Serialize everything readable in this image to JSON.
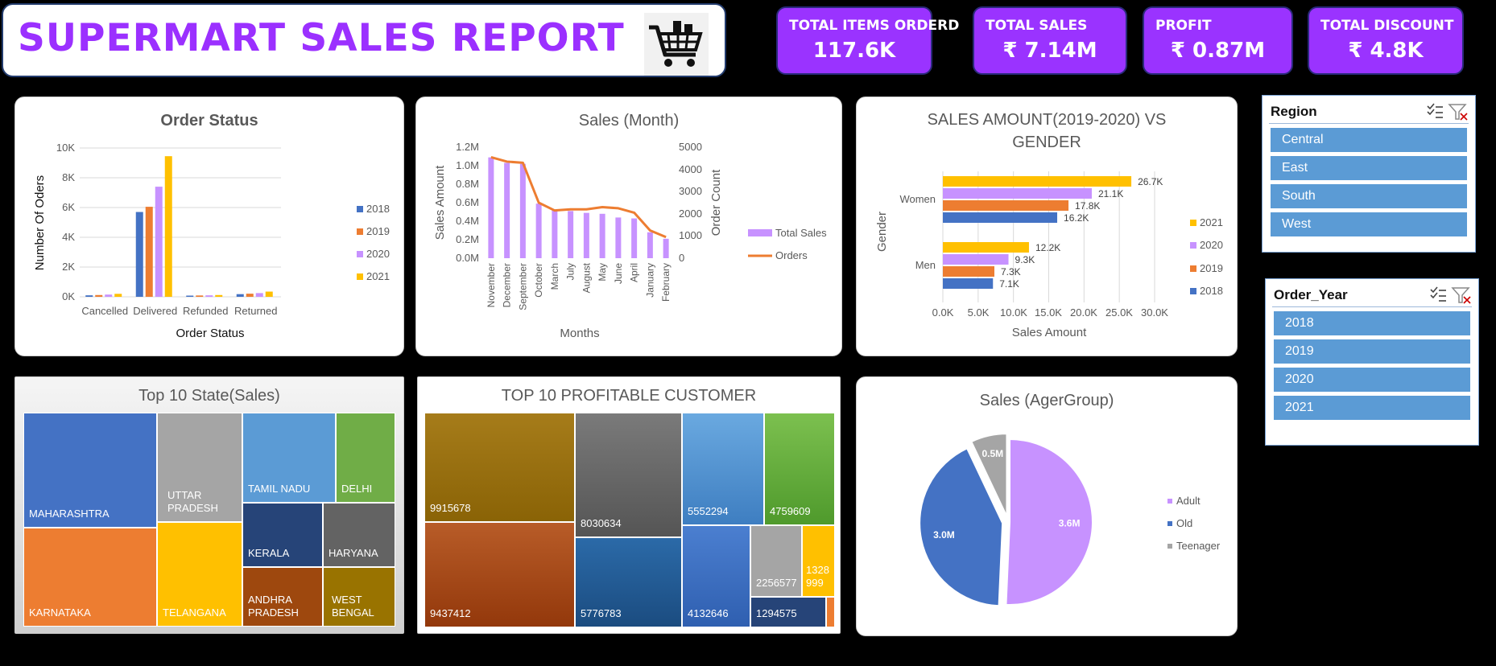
{
  "header": {
    "title": "SUPERMART SALES REPORT",
    "cart_icon": "shopping-cart-icon"
  },
  "kpis": [
    {
      "label": "TOTAL ITEMS ORDERD",
      "value": "117.6K"
    },
    {
      "label": "TOTAL SALES",
      "value": "₹ 7.14M"
    },
    {
      "label": "PROFIT",
      "value": "₹ 0.87M"
    },
    {
      "label": "TOTAL DISCOUNT",
      "value": "₹ 4.8K"
    }
  ],
  "order_status": {
    "title": "Order Status",
    "legend": [
      "2018",
      "2019",
      "2020",
      "2021"
    ],
    "xlabel": "Order Status",
    "ylabel": "Number Of Oders",
    "ticks": [
      "0K",
      "2K",
      "4K",
      "6K",
      "8K",
      "10K"
    ]
  },
  "sales_month": {
    "title": "Sales (Month)",
    "xlabel": "Months",
    "ylabel": "Sales Amount",
    "y2label": "Order Count",
    "legend": [
      "Total Sales",
      "Orders"
    ],
    "ticks_left": [
      "0.0M",
      "0.2M",
      "0.4M",
      "0.6M",
      "0.8M",
      "1.0M",
      "1.2M"
    ],
    "ticks_right": [
      "0",
      "1000",
      "2000",
      "3000",
      "4000",
      "5000"
    ]
  },
  "gender_chart": {
    "title_line1": "SALES AMOUNT(2019-2020) VS",
    "title_line2": "GENDER",
    "xlabel": "Sales Amount",
    "ylabel": "Gender",
    "legend": [
      "2021",
      "2020",
      "2019",
      "2018"
    ],
    "ticks": [
      "0.0K",
      "5.0K",
      "10.0K",
      "15.0K",
      "20.0K",
      "25.0K",
      "30.0K"
    ]
  },
  "states": {
    "title": "Top 10 State(Sales)",
    "labels": [
      "MAHARASHTRA",
      "UTTAR PRADESH",
      "TAMIL NADU",
      "DELHI",
      "KERALA",
      "HARYANA",
      "KARNATAKA",
      "TELANGANA",
      "ANDHRA PRADESH",
      "WEST BENGAL"
    ]
  },
  "customers": {
    "title": "TOP 10 PROFITABLE CUSTOMER",
    "labels": [
      "9915678",
      "8030634",
      "5552294",
      "4759609",
      "9437412",
      "5776783",
      "4132646",
      "2256577",
      "1328999",
      "1294575"
    ]
  },
  "age": {
    "title": "Sales (AgerGroup)",
    "legend": [
      "Adult",
      "Old",
      "Teenager"
    ]
  },
  "slicer_region": {
    "title": "Region",
    "items": [
      "Central",
      "East",
      "South",
      "West"
    ]
  },
  "slicer_year": {
    "title": "Order_Year",
    "items": [
      "2018",
      "2019",
      "2020",
      "2021"
    ]
  },
  "chart_data": [
    {
      "type": "bar",
      "title": "Order Status",
      "xlabel": "Order Status",
      "ylabel": "Number Of Oders",
      "categories": [
        "Cancelled",
        "Delivered",
        "Refunded",
        "Returned"
      ],
      "ylim": [
        0,
        10000
      ],
      "series": [
        {
          "name": "2018",
          "values": [
            100,
            5700,
            80,
            180
          ],
          "color": "#4472c4"
        },
        {
          "name": "2019",
          "values": [
            120,
            6050,
            90,
            210
          ],
          "color": "#ed7d31"
        },
        {
          "name": "2020",
          "values": [
            150,
            7400,
            100,
            250
          ],
          "color": "#c792ff"
        },
        {
          "name": "2021",
          "values": [
            200,
            9450,
            120,
            350
          ],
          "color": "#ffc000"
        }
      ]
    },
    {
      "type": "bar",
      "title": "Sales (Month)",
      "xlabel": "Months",
      "ylabel": "Sales Amount",
      "y2label": "Order Count",
      "categories": [
        "November",
        "December",
        "September",
        "October",
        "March",
        "July",
        "August",
        "May",
        "June",
        "April",
        "January",
        "February"
      ],
      "ylim": [
        0,
        1200000
      ],
      "y2lim": [
        0,
        5000
      ],
      "series": [
        {
          "name": "Total Sales",
          "type": "bar",
          "color": "#c792ff",
          "values": [
            1090000,
            1030000,
            1020000,
            590000,
            520000,
            510000,
            490000,
            480000,
            440000,
            430000,
            280000,
            210000
          ]
        },
        {
          "name": "Orders",
          "type": "line",
          "axis": "right",
          "color": "#ed7d31",
          "values": [
            4550,
            4350,
            4300,
            2500,
            2150,
            2200,
            2200,
            2300,
            2250,
            2050,
            1250,
            950
          ]
        }
      ]
    },
    {
      "type": "bar",
      "orientation": "horizontal",
      "title": "SALES AMOUNT(2019-2020) VS GENDER",
      "xlabel": "Sales Amount",
      "ylabel": "Gender",
      "categories": [
        "Women",
        "Men"
      ],
      "xlim": [
        0,
        30000
      ],
      "series": [
        {
          "name": "2021",
          "values": [
            26700,
            12200
          ],
          "labels": [
            "26.7K",
            "12.2K"
          ],
          "color": "#ffc000"
        },
        {
          "name": "2020",
          "values": [
            21100,
            9300
          ],
          "labels": [
            "21.1K",
            "9.3K"
          ],
          "color": "#c792ff"
        },
        {
          "name": "2019",
          "values": [
            17800,
            7300
          ],
          "labels": [
            "17.8K",
            "7.3K"
          ],
          "color": "#ed7d31"
        },
        {
          "name": "2018",
          "values": [
            16200,
            7100
          ],
          "labels": [
            "16.2K",
            "7.1K"
          ],
          "color": "#4472c4"
        }
      ]
    },
    {
      "type": "pie",
      "title": "Sales (AgerGroup)",
      "labels": [
        "Adult",
        "Old",
        "Teenager"
      ],
      "values": [
        3.6,
        3.0,
        0.5
      ],
      "value_labels": [
        "3.6M",
        "3.0M",
        "0.5M"
      ],
      "colors": [
        "#c792ff",
        "#4472c4",
        "#a5a5a5"
      ]
    }
  ]
}
